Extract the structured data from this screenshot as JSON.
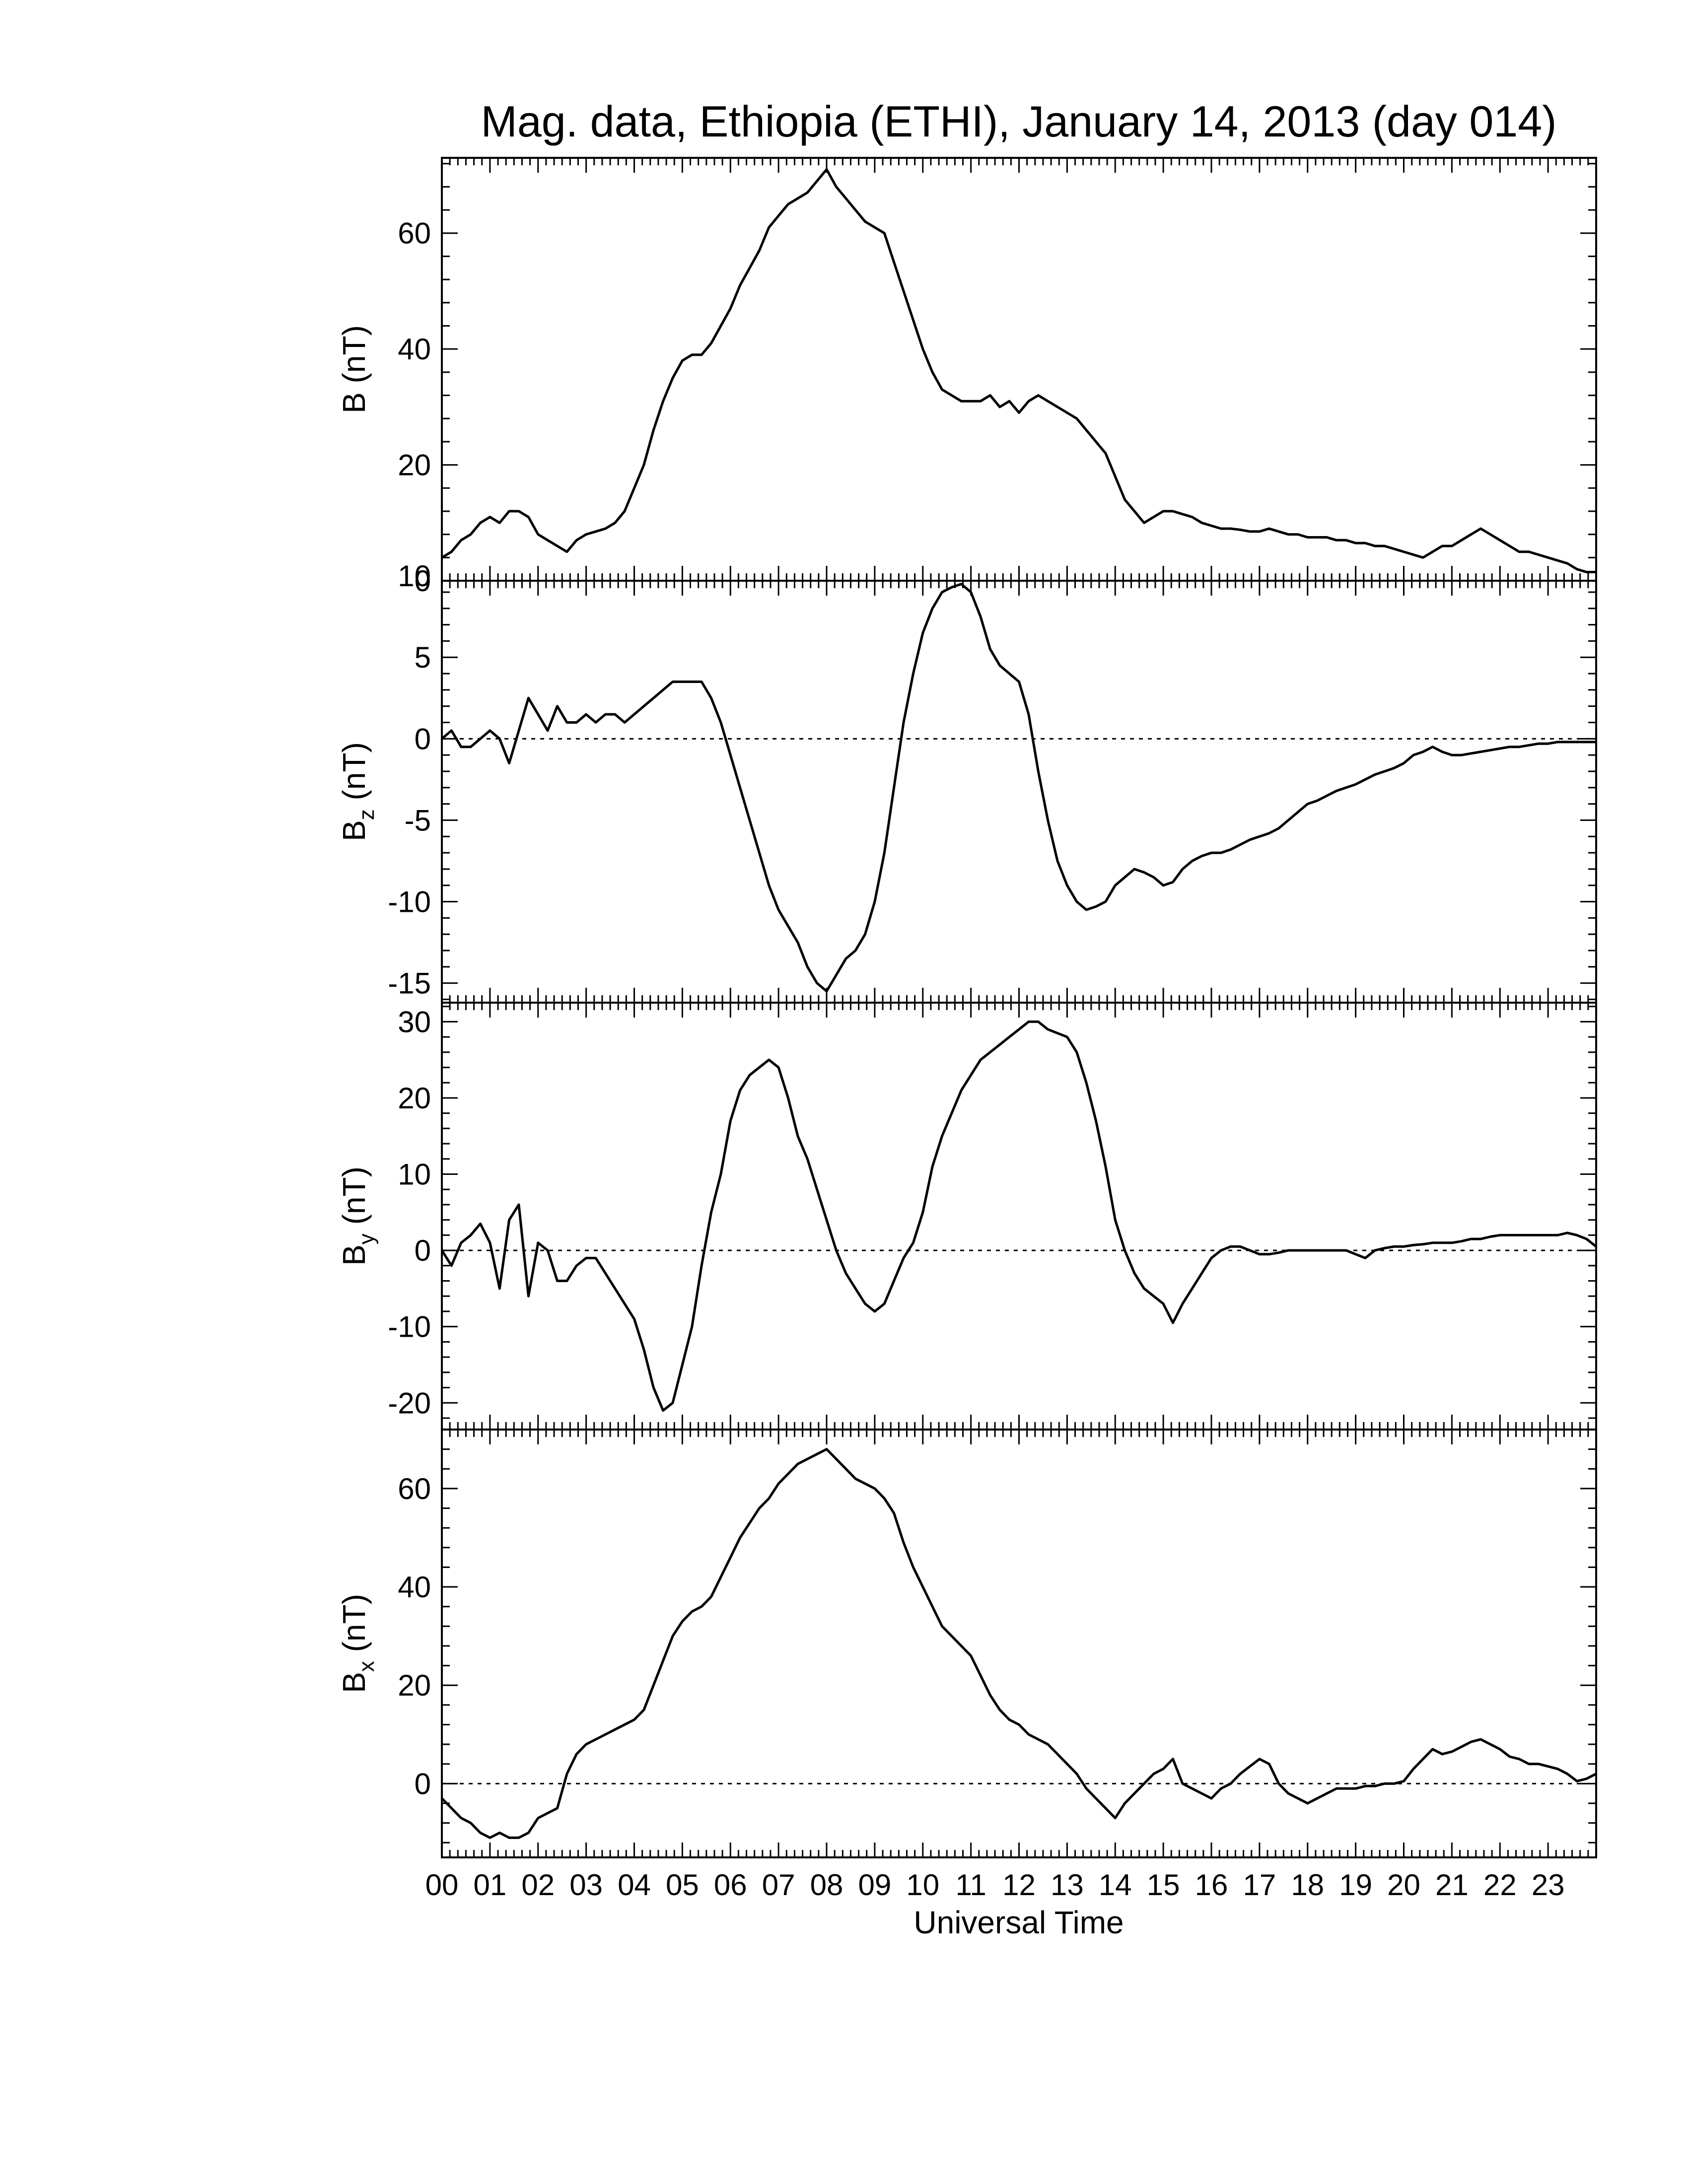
{
  "title": "Mag. data, Ethiopia (ETHI), January 14, 2013 (day 014)",
  "xlabel": "Universal Time",
  "colors": {
    "line": "#000000",
    "frame": "#000000",
    "zero_line": "#000000",
    "background": "#ffffff"
  },
  "chart_data": [
    {
      "type": "line",
      "panel": "B",
      "ylabel": "B (nT)",
      "ylabel_main": "B",
      "ylabel_sub": "",
      "ylabel_unit": "(nT)",
      "xlim": [
        0,
        24
      ],
      "ylim": [
        0,
        73
      ],
      "yticks": [
        0,
        20,
        40,
        60
      ],
      "ytick_labels": [
        "0",
        "20",
        "40",
        "60"
      ],
      "zero_line": false,
      "x": [
        0.0,
        0.2,
        0.4,
        0.6,
        0.8,
        1.0,
        1.2,
        1.4,
        1.6,
        1.8,
        2.0,
        2.2,
        2.4,
        2.6,
        2.8,
        3.0,
        3.2,
        3.4,
        3.6,
        3.8,
        4.0,
        4.2,
        4.4,
        4.6,
        4.8,
        5.0,
        5.2,
        5.4,
        5.6,
        5.8,
        6.0,
        6.2,
        6.4,
        6.6,
        6.8,
        7.0,
        7.2,
        7.4,
        7.6,
        7.8,
        8.0,
        8.2,
        8.4,
        8.6,
        8.8,
        9.0,
        9.2,
        9.4,
        9.6,
        9.8,
        10.0,
        10.2,
        10.4,
        10.6,
        10.8,
        11.0,
        11.2,
        11.4,
        11.6,
        11.8,
        12.0,
        12.2,
        12.4,
        12.6,
        12.8,
        13.0,
        13.2,
        13.4,
        13.6,
        13.8,
        14.0,
        14.2,
        14.4,
        14.6,
        14.8,
        15.0,
        15.2,
        15.4,
        15.6,
        15.8,
        16.0,
        16.2,
        16.4,
        16.6,
        16.8,
        17.0,
        17.2,
        17.4,
        17.6,
        17.8,
        18.0,
        18.2,
        18.4,
        18.6,
        18.8,
        19.0,
        19.2,
        19.4,
        19.6,
        19.8,
        20.0,
        20.2,
        20.4,
        20.6,
        20.8,
        21.0,
        21.2,
        21.4,
        21.6,
        21.8,
        22.0,
        22.2,
        22.4,
        22.6,
        22.8,
        23.0,
        23.2,
        23.4,
        23.6,
        23.8,
        24.0
      ],
      "values": [
        4,
        5,
        7,
        8,
        10,
        11,
        10,
        12,
        12,
        11,
        8,
        7,
        6,
        5,
        7,
        8,
        8.5,
        9,
        10,
        12,
        16,
        20,
        26,
        31,
        35,
        38,
        39,
        39,
        41,
        44,
        47,
        51,
        54,
        57,
        61,
        63,
        65,
        66,
        67,
        69,
        71,
        68,
        66,
        64,
        62,
        61,
        60,
        55,
        50,
        45,
        40,
        36,
        33,
        32,
        31,
        31,
        31,
        32,
        30,
        31,
        29,
        31,
        32,
        31,
        30,
        29,
        28,
        26,
        24,
        22,
        18,
        14,
        12,
        10,
        11,
        12,
        12,
        11.5,
        11,
        10,
        9.5,
        9,
        9,
        8.8,
        8.5,
        8.5,
        9,
        8.5,
        8,
        8,
        7.5,
        7.5,
        7.5,
        7,
        7,
        6.5,
        6.5,
        6,
        6,
        5.5,
        5,
        4.5,
        4,
        5,
        6,
        6,
        7,
        8,
        9,
        8,
        7,
        6,
        5,
        5,
        4.5,
        4,
        3.5,
        3,
        2,
        1.5,
        1.5
      ]
    },
    {
      "type": "line",
      "panel": "Bz",
      "ylabel": "Bz (nT)",
      "ylabel_main": "B",
      "ylabel_sub": "z",
      "ylabel_unit": "(nT)",
      "xlim": [
        0,
        24
      ],
      "ylim": [
        -16.2,
        9.7
      ],
      "yticks": [
        -15,
        -10,
        -5,
        0,
        5,
        10
      ],
      "ytick_labels": [
        "-15",
        "-10",
        "-5",
        "0",
        "5",
        "10"
      ],
      "zero_line": true,
      "x": [
        0.0,
        0.2,
        0.4,
        0.6,
        0.8,
        1.0,
        1.2,
        1.4,
        1.6,
        1.8,
        2.0,
        2.2,
        2.4,
        2.6,
        2.8,
        3.0,
        3.2,
        3.4,
        3.6,
        3.8,
        4.0,
        4.2,
        4.4,
        4.6,
        4.8,
        5.0,
        5.2,
        5.4,
        5.6,
        5.8,
        6.0,
        6.2,
        6.4,
        6.6,
        6.8,
        7.0,
        7.2,
        7.4,
        7.6,
        7.8,
        8.0,
        8.2,
        8.4,
        8.6,
        8.8,
        9.0,
        9.2,
        9.4,
        9.6,
        9.8,
        10.0,
        10.2,
        10.4,
        10.6,
        10.8,
        11.0,
        11.2,
        11.4,
        11.6,
        11.8,
        12.0,
        12.2,
        12.4,
        12.6,
        12.8,
        13.0,
        13.2,
        13.4,
        13.6,
        13.8,
        14.0,
        14.2,
        14.4,
        14.6,
        14.8,
        15.0,
        15.2,
        15.4,
        15.6,
        15.8,
        16.0,
        16.2,
        16.4,
        16.6,
        16.8,
        17.0,
        17.2,
        17.4,
        17.6,
        17.8,
        18.0,
        18.2,
        18.4,
        18.6,
        18.8,
        19.0,
        19.2,
        19.4,
        19.6,
        19.8,
        20.0,
        20.2,
        20.4,
        20.6,
        20.8,
        21.0,
        21.2,
        21.4,
        21.6,
        21.8,
        22.0,
        22.2,
        22.4,
        22.6,
        22.8,
        23.0,
        23.2,
        23.4,
        23.6,
        23.8,
        24.0
      ],
      "values": [
        0,
        0.5,
        -0.5,
        -0.5,
        0,
        0.5,
        0,
        -1.5,
        0.5,
        2.5,
        1.5,
        0.5,
        2,
        1,
        1,
        1.5,
        1,
        1.5,
        1.5,
        1,
        1.5,
        2,
        2.5,
        3,
        3.5,
        3.5,
        3.5,
        3.5,
        2.5,
        1,
        -1,
        -3,
        -5,
        -7,
        -9,
        -10.5,
        -11.5,
        -12.5,
        -14,
        -15,
        -15.5,
        -14.5,
        -13.5,
        -13,
        -12,
        -10,
        -7,
        -3,
        1,
        4,
        6.5,
        8,
        9,
        9.3,
        9.5,
        9,
        7.5,
        5.5,
        4.5,
        4,
        3.5,
        1.5,
        -2,
        -5,
        -7.5,
        -9,
        -10,
        -10.5,
        -10.3,
        -10,
        -9,
        -8.5,
        -8,
        -8.2,
        -8.5,
        -9,
        -8.8,
        -8,
        -7.5,
        -7.2,
        -7,
        -7,
        -6.8,
        -6.5,
        -6.2,
        -6,
        -5.8,
        -5.5,
        -5,
        -4.5,
        -4,
        -3.8,
        -3.5,
        -3.2,
        -3,
        -2.8,
        -2.5,
        -2.2,
        -2,
        -1.8,
        -1.5,
        -1,
        -0.8,
        -0.5,
        -0.8,
        -1,
        -1,
        -0.9,
        -0.8,
        -0.7,
        -0.6,
        -0.5,
        -0.5,
        -0.4,
        -0.3,
        -0.3,
        -0.2,
        -0.2,
        -0.2,
        -0.2,
        -0.2
      ]
    },
    {
      "type": "line",
      "panel": "By",
      "ylabel": "By (nT)",
      "ylabel_main": "B",
      "ylabel_sub": "y",
      "ylabel_unit": "(nT)",
      "xlim": [
        0,
        24
      ],
      "ylim": [
        -23.5,
        32.5
      ],
      "yticks": [
        -20,
        -10,
        0,
        10,
        20,
        30
      ],
      "ytick_labels": [
        "-20",
        "-10",
        "0",
        "10",
        "20",
        "30"
      ],
      "zero_line": true,
      "x": [
        0.0,
        0.2,
        0.4,
        0.6,
        0.8,
        1.0,
        1.2,
        1.4,
        1.6,
        1.8,
        2.0,
        2.2,
        2.4,
        2.6,
        2.8,
        3.0,
        3.2,
        3.4,
        3.6,
        3.8,
        4.0,
        4.2,
        4.4,
        4.6,
        4.8,
        5.0,
        5.2,
        5.4,
        5.6,
        5.8,
        6.0,
        6.2,
        6.4,
        6.6,
        6.8,
        7.0,
        7.2,
        7.4,
        7.6,
        7.8,
        8.0,
        8.2,
        8.4,
        8.6,
        8.8,
        9.0,
        9.2,
        9.4,
        9.6,
        9.8,
        10.0,
        10.2,
        10.4,
        10.6,
        10.8,
        11.0,
        11.2,
        11.4,
        11.6,
        11.8,
        12.0,
        12.2,
        12.4,
        12.6,
        12.8,
        13.0,
        13.2,
        13.4,
        13.6,
        13.8,
        14.0,
        14.2,
        14.4,
        14.6,
        14.8,
        15.0,
        15.2,
        15.4,
        15.6,
        15.8,
        16.0,
        16.2,
        16.4,
        16.6,
        16.8,
        17.0,
        17.2,
        17.4,
        17.6,
        17.8,
        18.0,
        18.2,
        18.4,
        18.6,
        18.8,
        19.0,
        19.2,
        19.4,
        19.6,
        19.8,
        20.0,
        20.2,
        20.4,
        20.6,
        20.8,
        21.0,
        21.2,
        21.4,
        21.6,
        21.8,
        22.0,
        22.2,
        22.4,
        22.6,
        22.8,
        23.0,
        23.2,
        23.4,
        23.6,
        23.8,
        24.0
      ],
      "values": [
        0,
        -2,
        1,
        2,
        3.5,
        1,
        -5,
        4,
        6,
        -6,
        1,
        0,
        -4,
        -4,
        -2,
        -1,
        -1,
        -3,
        -5,
        -7,
        -9,
        -13,
        -18,
        -21,
        -20,
        -15,
        -10,
        -2,
        5,
        10,
        17,
        21,
        23,
        24,
        25,
        24,
        20,
        15,
        12,
        8,
        4,
        0,
        -3,
        -5,
        -7,
        -8,
        -7,
        -4,
        -1,
        1,
        5,
        11,
        15,
        18,
        21,
        23,
        25,
        26,
        27,
        28,
        29,
        30,
        30,
        29,
        28.5,
        28,
        26,
        22,
        17,
        11,
        4,
        0,
        -3,
        -5,
        -6,
        -7,
        -9.5,
        -7,
        -5,
        -3,
        -1,
        0,
        0.5,
        0.5,
        0,
        -0.5,
        -0.5,
        -0.3,
        0,
        0,
        0,
        0,
        0,
        0,
        0,
        -0.5,
        -1,
        0,
        0.3,
        0.5,
        0.5,
        0.7,
        0.8,
        1,
        1,
        1,
        1.2,
        1.5,
        1.5,
        1.8,
        2,
        2,
        2,
        2,
        2,
        2,
        2,
        2.3,
        2,
        1.5,
        0.5
      ]
    },
    {
      "type": "line",
      "panel": "Bx",
      "ylabel": "Bx (nT)",
      "ylabel_main": "B",
      "ylabel_sub": "x",
      "ylabel_unit": "(nT)",
      "xlim": [
        0,
        24
      ],
      "ylim": [
        -15,
        72
      ],
      "yticks": [
        0,
        20,
        40,
        60
      ],
      "ytick_labels": [
        "0",
        "20",
        "40",
        "60"
      ],
      "zero_line": true,
      "x": [
        0.0,
        0.2,
        0.4,
        0.6,
        0.8,
        1.0,
        1.2,
        1.4,
        1.6,
        1.8,
        2.0,
        2.2,
        2.4,
        2.6,
        2.8,
        3.0,
        3.2,
        3.4,
        3.6,
        3.8,
        4.0,
        4.2,
        4.4,
        4.6,
        4.8,
        5.0,
        5.2,
        5.4,
        5.6,
        5.8,
        6.0,
        6.2,
        6.4,
        6.6,
        6.8,
        7.0,
        7.2,
        7.4,
        7.6,
        7.8,
        8.0,
        8.2,
        8.4,
        8.6,
        8.8,
        9.0,
        9.2,
        9.4,
        9.6,
        9.8,
        10.0,
        10.2,
        10.4,
        10.6,
        10.8,
        11.0,
        11.2,
        11.4,
        11.6,
        11.8,
        12.0,
        12.2,
        12.4,
        12.6,
        12.8,
        13.0,
        13.2,
        13.4,
        13.6,
        13.8,
        14.0,
        14.2,
        14.4,
        14.6,
        14.8,
        15.0,
        15.2,
        15.4,
        15.6,
        15.8,
        16.0,
        16.2,
        16.4,
        16.6,
        16.8,
        17.0,
        17.2,
        17.4,
        17.6,
        17.8,
        18.0,
        18.2,
        18.4,
        18.6,
        18.8,
        19.0,
        19.2,
        19.4,
        19.6,
        19.8,
        20.0,
        20.2,
        20.4,
        20.6,
        20.8,
        21.0,
        21.2,
        21.4,
        21.6,
        21.8,
        22.0,
        22.2,
        22.4,
        22.6,
        22.8,
        23.0,
        23.2,
        23.4,
        23.6,
        23.8,
        24.0
      ],
      "values": [
        -3,
        -5,
        -7,
        -8,
        -10,
        -11,
        -10,
        -11,
        -11,
        -10,
        -7,
        -6,
        -5,
        2,
        6,
        8,
        9,
        10,
        11,
        12,
        13,
        15,
        20,
        25,
        30,
        33,
        35,
        36,
        38,
        42,
        46,
        50,
        53,
        56,
        58,
        61,
        63,
        65,
        66,
        67,
        68,
        66,
        64,
        62,
        61,
        60,
        58,
        55,
        49,
        44,
        40,
        36,
        32,
        30,
        28,
        26,
        22,
        18,
        15,
        13,
        12,
        10,
        9,
        8,
        6,
        4,
        2,
        -1,
        -3,
        -5,
        -7,
        -4,
        -2,
        0,
        2,
        3,
        5,
        0,
        -1,
        -2,
        -3,
        -1,
        0,
        2,
        3.5,
        5,
        4,
        0,
        -2,
        -3,
        -4,
        -3,
        -2,
        -1,
        -1,
        -1,
        -0.5,
        -0.5,
        0,
        0,
        0.5,
        3,
        5,
        7,
        6,
        6.5,
        7.5,
        8.5,
        9,
        8,
        7,
        5.5,
        5,
        4,
        4,
        3.5,
        3,
        2,
        0.5,
        1,
        2
      ]
    }
  ],
  "x_ticks": [
    0,
    1,
    2,
    3,
    4,
    5,
    6,
    7,
    8,
    9,
    10,
    11,
    12,
    13,
    14,
    15,
    16,
    17,
    18,
    19,
    20,
    21,
    22,
    23
  ],
  "x_tick_labels": [
    "00",
    "01",
    "02",
    "03",
    "04",
    "05",
    "06",
    "07",
    "08",
    "09",
    "10",
    "11",
    "12",
    "13",
    "14",
    "15",
    "16",
    "17",
    "18",
    "19",
    "20",
    "21",
    "22",
    "23"
  ]
}
